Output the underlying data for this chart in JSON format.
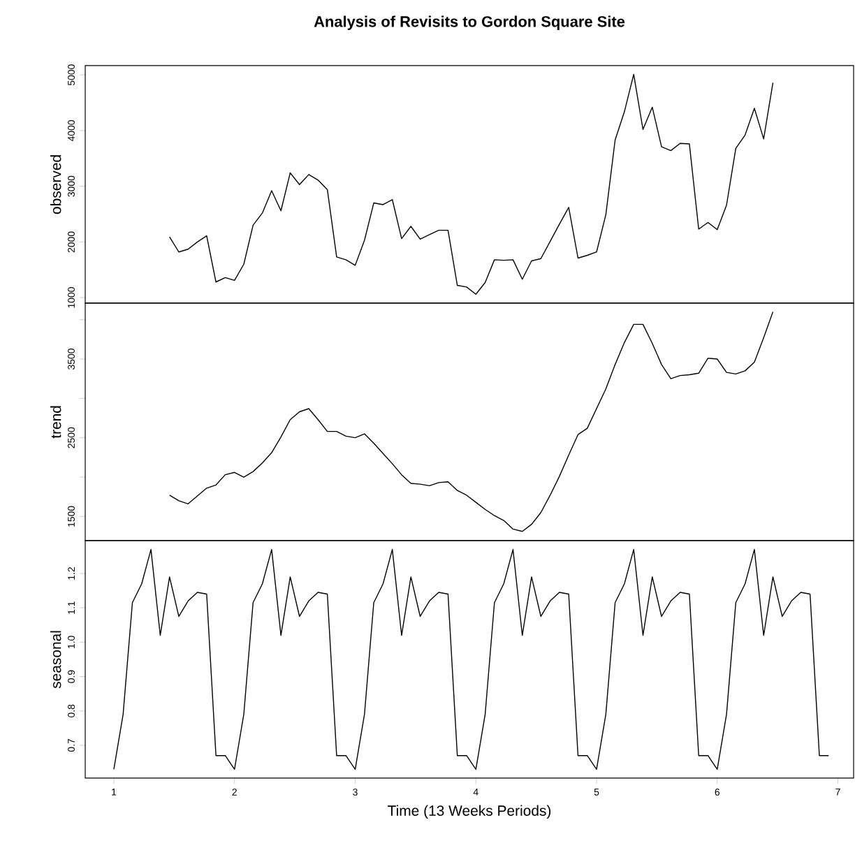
{
  "chart_data": [
    {
      "type": "line",
      "title": "Analysis of Revisits to Gordon Square Site",
      "ylabel": "observed",
      "color": "#000000",
      "tick_labels": "y",
      "xlim": [
        0.763,
        7.13
      ],
      "ylim": [
        901,
        5166
      ],
      "yticks": [
        1000,
        2000,
        3000,
        4000,
        5000
      ],
      "x": [
        1.4615,
        1.5385,
        1.6154,
        1.6923,
        1.7692,
        1.8462,
        1.9231,
        2.0,
        2.0769,
        2.1538,
        2.2308,
        2.3077,
        2.3846,
        2.4615,
        2.5385,
        2.6154,
        2.6923,
        2.7692,
        2.8462,
        2.9231,
        3.0,
        3.0769,
        3.1538,
        3.2308,
        3.3077,
        3.3846,
        3.4615,
        3.5385,
        3.6154,
        3.6923,
        3.7692,
        3.8462,
        3.9231,
        4.0,
        4.0769,
        4.1538,
        4.2308,
        4.3077,
        4.3846,
        4.4615,
        4.5385,
        4.6154,
        4.6923,
        4.7692,
        4.8462,
        4.9231,
        5.0,
        5.0769,
        5.1538,
        5.2308,
        5.3077,
        5.3846,
        5.4615,
        5.5385,
        5.6154,
        5.6923,
        5.7692,
        5.8462,
        5.9231,
        6.0,
        6.0769,
        6.1538,
        6.2308,
        6.3077,
        6.3846,
        6.4615
      ],
      "values": [
        2090,
        1820,
        1870,
        2000,
        2110,
        1280,
        1360,
        1310,
        1600,
        2300,
        2520,
        2920,
        2560,
        3240,
        3030,
        3210,
        3110,
        2940,
        1730,
        1680,
        1580,
        2030,
        2700,
        2670,
        2760,
        2060,
        2280,
        2050,
        2130,
        2210,
        2210,
        1220,
        1190,
        1060,
        1270,
        1680,
        1670,
        1680,
        1330,
        1660,
        1700,
        2010,
        2320,
        2620,
        1710,
        1760,
        1820,
        2490,
        3830,
        4340,
        5010,
        4020,
        4420,
        3710,
        3640,
        3770,
        3760,
        2230,
        2350,
        2220,
        2660,
        3680,
        3920,
        4400,
        3850,
        4860
      ]
    },
    {
      "type": "line",
      "ylabel": "trend",
      "color": "#000000",
      "tick_labels": "y",
      "xlim": [
        0.763,
        7.13
      ],
      "ylim": [
        1193,
        4210
      ],
      "yticks": [
        1500,
        {
          "value": 2000,
          "label": null
        },
        2500,
        {
          "value": 3000,
          "label": null
        },
        3500,
        {
          "value": 4000,
          "label": null
        }
      ],
      "x": [
        1.4615,
        1.5385,
        1.6154,
        1.6923,
        1.7692,
        1.8462,
        1.9231,
        2.0,
        2.0769,
        2.1538,
        2.2308,
        2.3077,
        2.3846,
        2.4615,
        2.5385,
        2.6154,
        2.6923,
        2.7692,
        2.8462,
        2.9231,
        3.0,
        3.0769,
        3.1538,
        3.2308,
        3.3077,
        3.3846,
        3.4615,
        3.5385,
        3.6154,
        3.6923,
        3.7692,
        3.8462,
        3.9231,
        4.0,
        4.0769,
        4.1538,
        4.2308,
        4.3077,
        4.3846,
        4.4615,
        4.5385,
        4.6154,
        4.6923,
        4.7692,
        4.8462,
        4.9231,
        5.0,
        5.0769,
        5.1538,
        5.2308,
        5.3077,
        5.3846,
        5.4615,
        5.5385,
        5.6154,
        5.6923,
        5.7692,
        5.8462,
        5.9231,
        6.0,
        6.0769,
        6.1538,
        6.2308,
        6.3077,
        6.3846,
        6.4615
      ],
      "values": [
        1770,
        1700,
        1660,
        1760,
        1860,
        1900,
        2030,
        2060,
        2000,
        2070,
        2180,
        2310,
        2510,
        2730,
        2830,
        2870,
        2730,
        2580,
        2580,
        2520,
        2500,
        2550,
        2430,
        2300,
        2170,
        2030,
        1920,
        1910,
        1890,
        1930,
        1940,
        1830,
        1770,
        1680,
        1590,
        1510,
        1450,
        1340,
        1310,
        1400,
        1550,
        1770,
        2010,
        2280,
        2540,
        2620,
        2870,
        3120,
        3430,
        3710,
        3940,
        3940,
        3700,
        3430,
        3250,
        3290,
        3300,
        3320,
        3510,
        3500,
        3330,
        3310,
        3350,
        3460,
        3770,
        4100
      ]
    },
    {
      "type": "line",
      "ylabel": "seasonal",
      "xlabel": "Time (13 Weeks Periods)",
      "color": "#000000",
      "xlim": [
        0.763,
        7.13
      ],
      "xticks": [
        1,
        2,
        3,
        4,
        5,
        6,
        7
      ],
      "ylim": [
        0.6044,
        1.2956
      ],
      "yticks": [
        0.7,
        0.8,
        0.9,
        {
          "value": 1,
          "label": "1.0"
        },
        1.1,
        1.2
      ],
      "x": [
        1.0,
        1.0769,
        1.1538,
        1.2308,
        1.3077,
        1.3846,
        1.4615,
        1.5385,
        1.6154,
        1.6923,
        1.7692,
        1.8462,
        1.9231,
        2.0,
        2.0769,
        2.1538,
        2.2308,
        2.3077,
        2.3846,
        2.4615,
        2.5385,
        2.6154,
        2.6923,
        2.7692,
        2.8462,
        2.9231,
        3.0,
        3.0769,
        3.1538,
        3.2308,
        3.3077,
        3.3846,
        3.4615,
        3.5385,
        3.6154,
        3.6923,
        3.7692,
        3.8462,
        3.9231,
        4.0,
        4.0769,
        4.1538,
        4.2308,
        4.3077,
        4.3846,
        4.4615,
        4.5385,
        4.6154,
        4.6923,
        4.7692,
        4.8462,
        4.9231,
        5.0,
        5.0769,
        5.1538,
        5.2308,
        5.3077,
        5.3846,
        5.4615,
        5.5385,
        5.6154,
        5.6923,
        5.7692,
        5.8462,
        5.9231,
        6.0,
        6.0769,
        6.1538,
        6.2308,
        6.3077,
        6.3846,
        6.4615,
        6.5385,
        6.6154,
        6.6923,
        6.7692,
        6.8462,
        6.9231
      ],
      "values": [
        0.63,
        0.79,
        1.115,
        1.17,
        1.27,
        1.02,
        1.19,
        1.075,
        1.12,
        1.145,
        1.14,
        0.67,
        0.67,
        0.63,
        0.79,
        1.115,
        1.17,
        1.27,
        1.02,
        1.19,
        1.075,
        1.12,
        1.145,
        1.14,
        0.67,
        0.67,
        0.63,
        0.79,
        1.115,
        1.17,
        1.27,
        1.02,
        1.19,
        1.075,
        1.12,
        1.145,
        1.14,
        0.67,
        0.67,
        0.63,
        0.79,
        1.115,
        1.17,
        1.27,
        1.02,
        1.19,
        1.075,
        1.12,
        1.145,
        1.14,
        0.67,
        0.67,
        0.63,
        0.79,
        1.115,
        1.17,
        1.27,
        1.02,
        1.19,
        1.075,
        1.12,
        1.145,
        1.14,
        0.67,
        0.67,
        0.63,
        0.79,
        1.115,
        1.17,
        1.27,
        1.02,
        1.19,
        1.075,
        1.12,
        1.145,
        1.14,
        0.67,
        0.67
      ]
    }
  ]
}
